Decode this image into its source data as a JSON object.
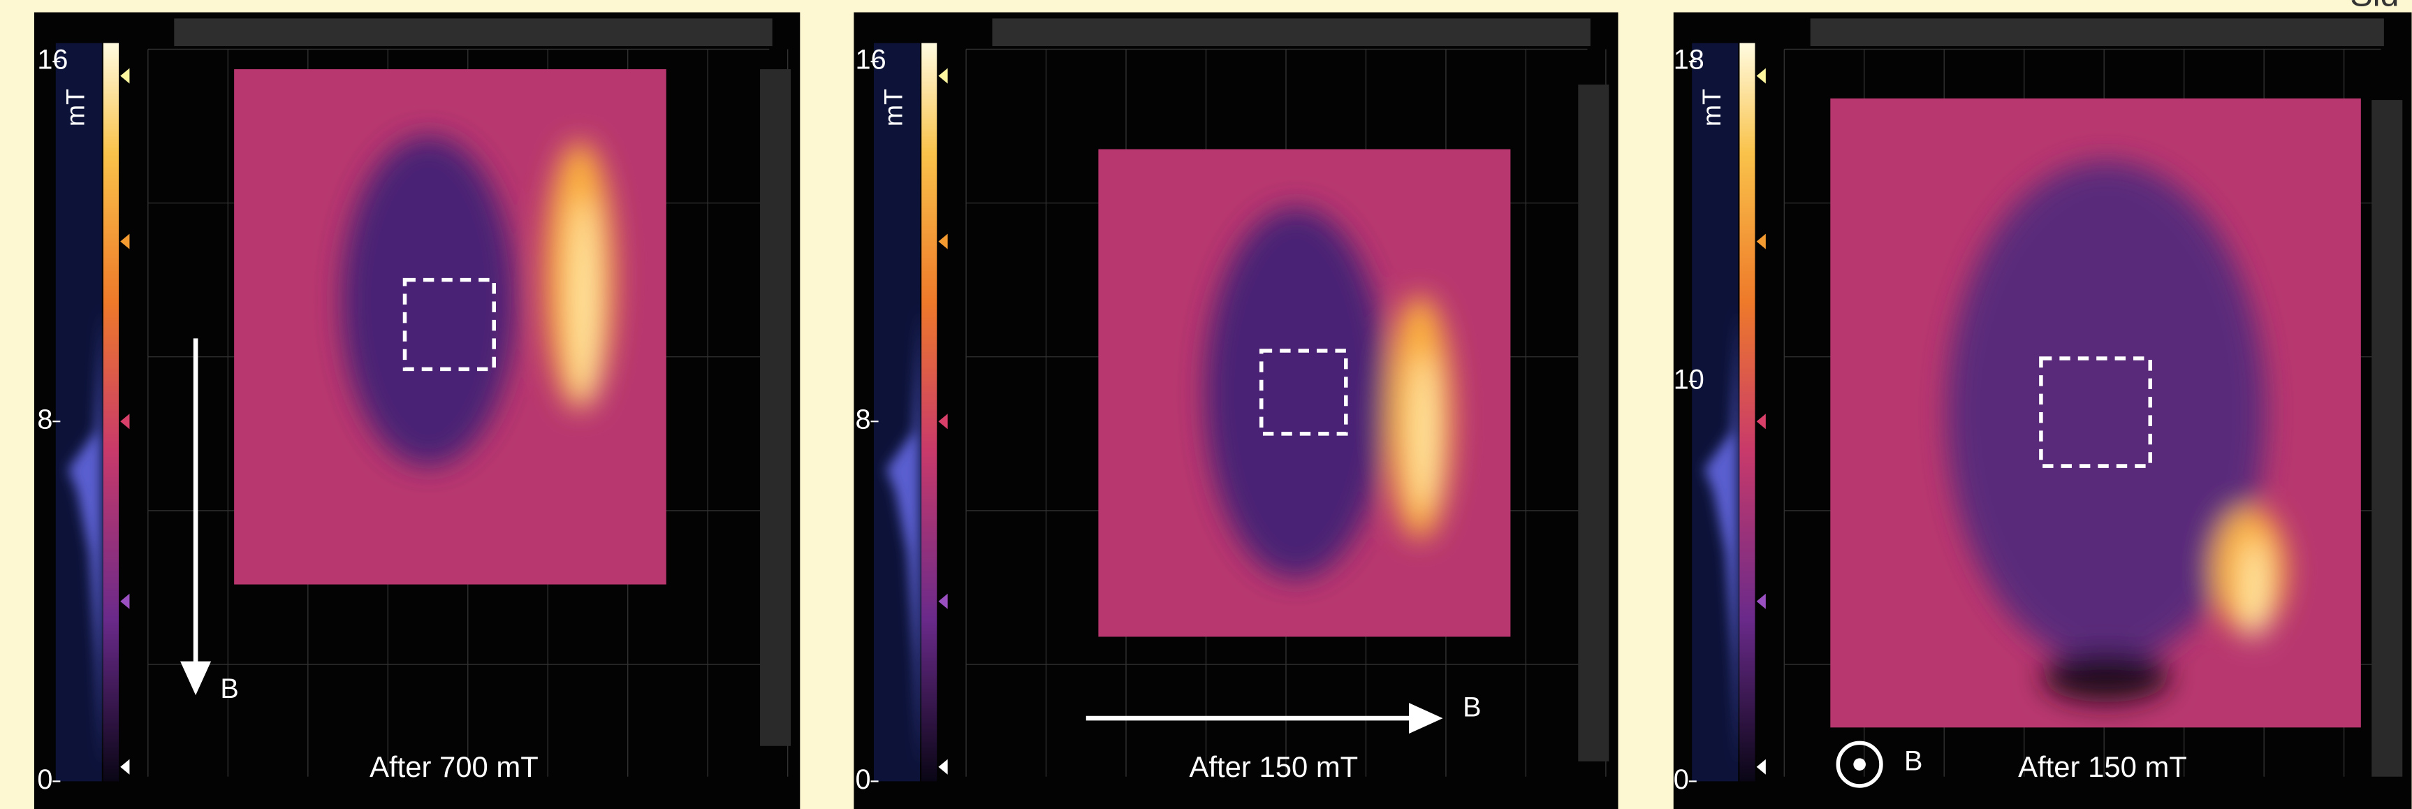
{
  "corner_text": "Sid",
  "panels": [
    {
      "unit": "mT",
      "ticks": [
        0,
        8,
        16
      ],
      "field_label": "B",
      "caption": "After 700 mT"
    },
    {
      "unit": "mT",
      "ticks": [
        0,
        8,
        16
      ],
      "field_label": "B",
      "caption": "After 150 mT"
    },
    {
      "unit": "mT",
      "ticks": [
        0,
        10,
        18
      ],
      "field_label": "B",
      "caption": "After 150 mT"
    }
  ]
}
